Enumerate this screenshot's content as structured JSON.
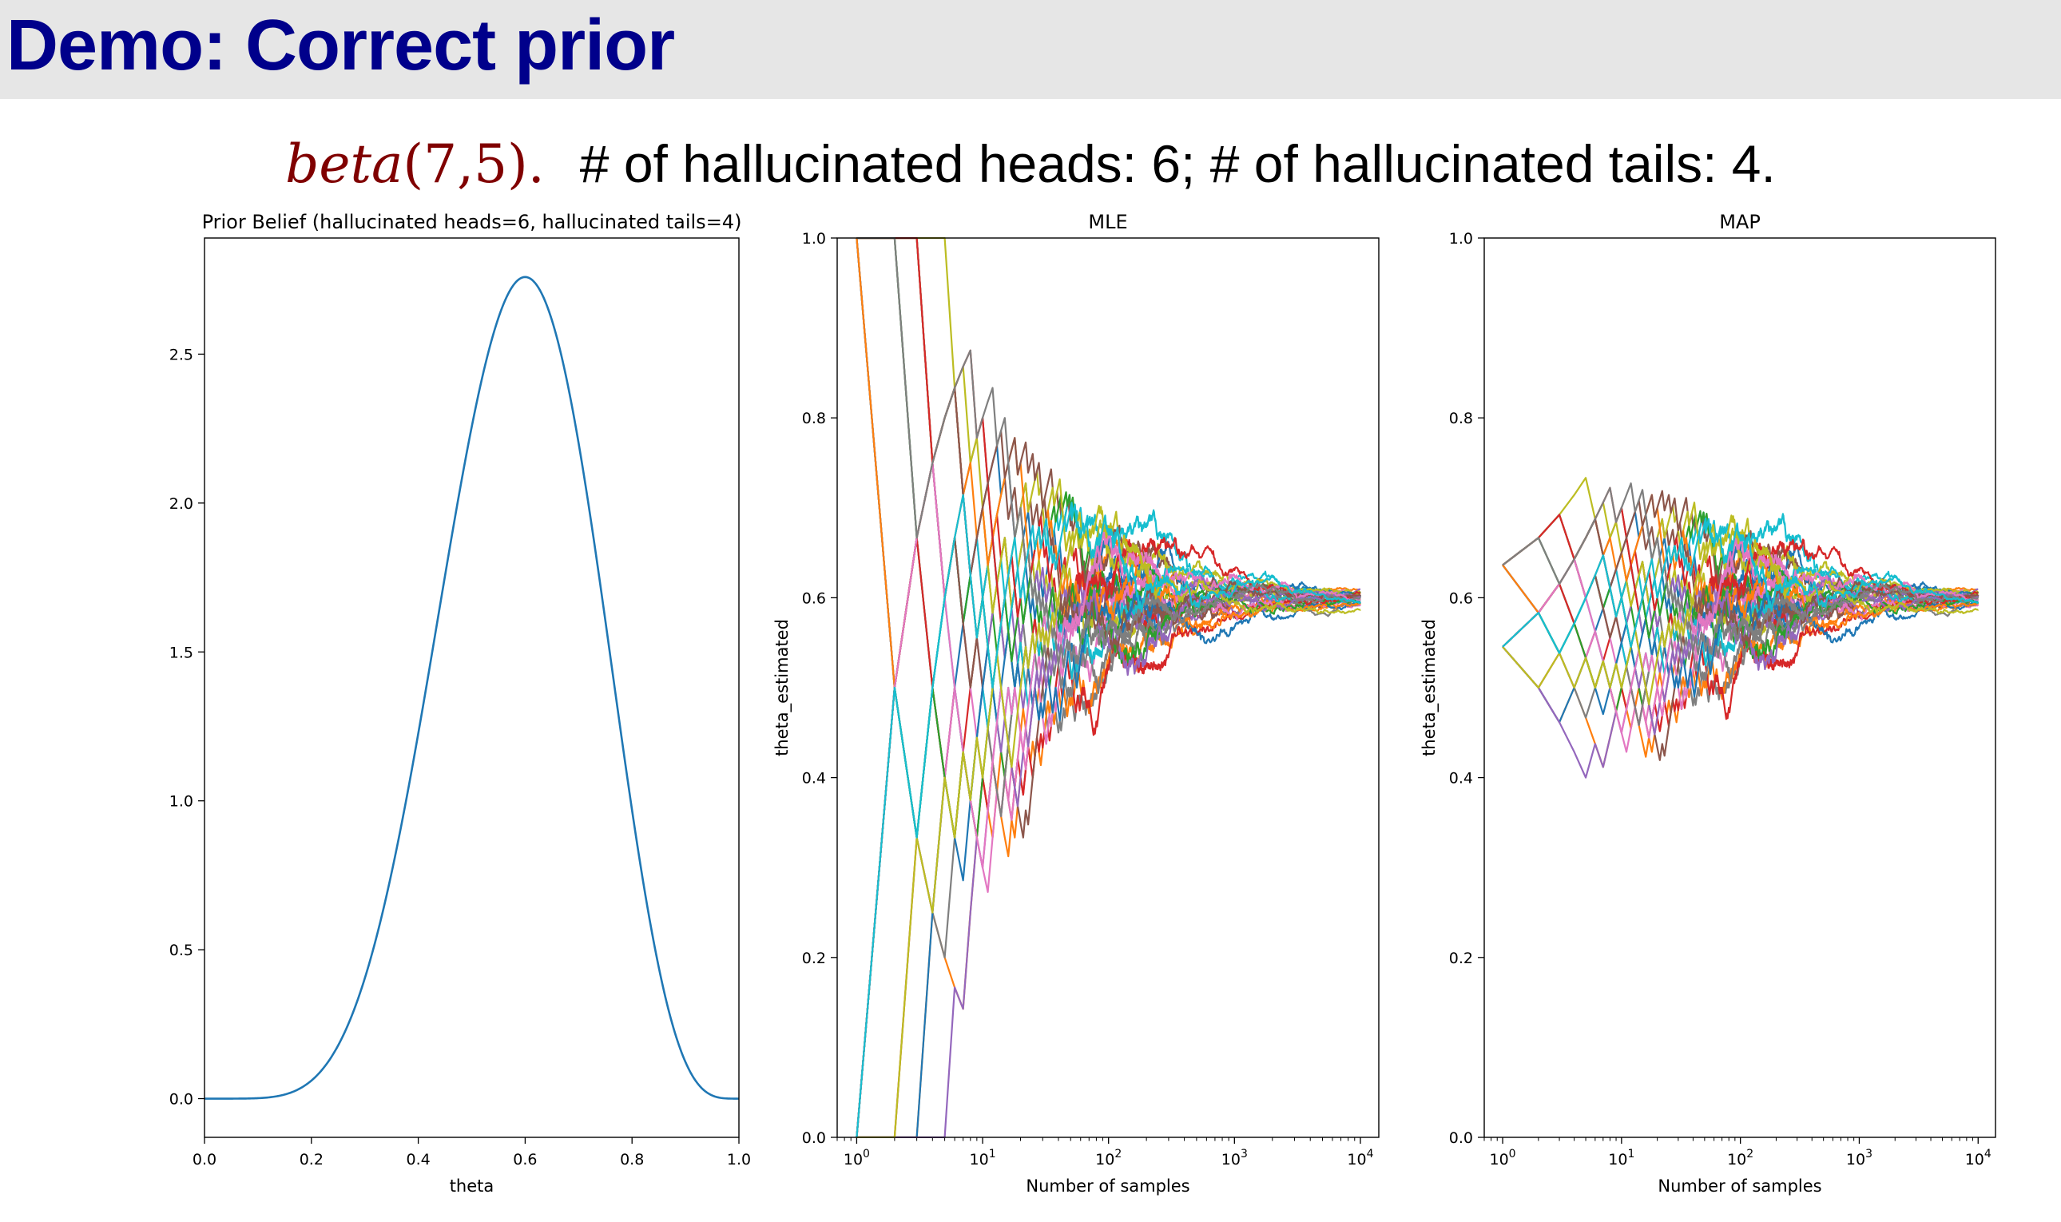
{
  "slide": {
    "title": "Demo: Correct prior",
    "formula_prefix": "beta",
    "formula_args": "(7,5).",
    "description": "# of hallucinated heads: 6; # of hallucinated tails: 4."
  },
  "colors": {
    "title": "#00008b",
    "formula": "#800000",
    "prior_line": "#1f77b4",
    "tab10": [
      "#1f77b4",
      "#ff7f0e",
      "#2ca02c",
      "#d62728",
      "#9467bd",
      "#8c564b",
      "#e377c2",
      "#7f7f7f",
      "#bcbd22",
      "#17becf"
    ]
  },
  "chart_data": [
    {
      "type": "line",
      "title": "Prior Belief (hallucinated heads=6, hallucinated tails=4)",
      "xlabel": "theta",
      "ylabel": "",
      "distribution": "beta",
      "alpha": 7,
      "beta": 5,
      "xlim": [
        0.0,
        1.0
      ],
      "ylim": [
        -0.13,
        2.89
      ],
      "xticks": [
        0.0,
        0.2,
        0.4,
        0.6,
        0.8,
        1.0
      ],
      "xticklabels": [
        "0.0",
        "0.2",
        "0.4",
        "0.6",
        "0.8",
        "1.0"
      ],
      "yticks": [
        0.0,
        0.5,
        1.0,
        1.5,
        2.0,
        2.5
      ],
      "yticklabels": [
        "0.0",
        "0.5",
        "1.0",
        "1.5",
        "2.0",
        "2.5"
      ],
      "peak": {
        "theta": 0.6,
        "density": 2.76
      }
    },
    {
      "type": "line",
      "title": "MLE",
      "xlabel": "Number of samples",
      "ylabel": "theta_estimated",
      "xscale": "log",
      "xlim": [
        0.7,
        14000
      ],
      "ylim": [
        0.0,
        1.0
      ],
      "xticks": [
        1,
        10,
        100,
        1000,
        10000
      ],
      "xticklabels": [
        "10^0",
        "10^1",
        "10^2",
        "10^3",
        "10^4"
      ],
      "yticks": [
        0.0,
        0.2,
        0.4,
        0.6,
        0.8,
        1.0
      ],
      "yticklabels": [
        "0.0",
        "0.2",
        "0.4",
        "0.6",
        "0.8",
        "1.0"
      ],
      "n_series": 30,
      "true_theta": 0.6,
      "n_samples": 10000,
      "prior_heads": 0,
      "prior_tails": 0
    },
    {
      "type": "line",
      "title": "MAP",
      "xlabel": "Number of samples",
      "ylabel": "theta_estimated",
      "xscale": "log",
      "xlim": [
        0.7,
        14000
      ],
      "ylim": [
        0.0,
        1.0
      ],
      "xticks": [
        1,
        10,
        100,
        1000,
        10000
      ],
      "xticklabels": [
        "10^0",
        "10^1",
        "10^2",
        "10^3",
        "10^4"
      ],
      "yticks": [
        0.0,
        0.2,
        0.4,
        0.6,
        0.8,
        1.0
      ],
      "yticklabels": [
        "0.0",
        "0.2",
        "0.4",
        "0.6",
        "0.8",
        "1.0"
      ],
      "n_series": 30,
      "true_theta": 0.6,
      "n_samples": 10000,
      "prior_heads": 6,
      "prior_tails": 4
    }
  ]
}
